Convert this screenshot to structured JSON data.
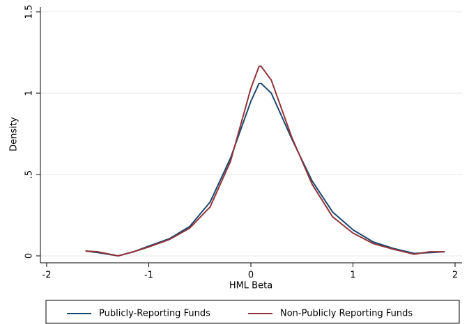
{
  "chart_data": {
    "type": "line",
    "x_label": "HML Beta",
    "y_label": "Density",
    "x": [
      -1.62,
      -1.5,
      -1.3,
      -1.15,
      -1.0,
      -0.8,
      -0.6,
      -0.4,
      -0.2,
      0,
      0.08,
      0.1,
      0.2,
      0.4,
      0.6,
      0.8,
      1.0,
      1.2,
      1.4,
      1.6,
      1.75,
      1.9
    ],
    "series": [
      {
        "name": "Publicly-Reporting Funds",
        "color": "#1a476f",
        "values": [
          0.03,
          0.02,
          0.0,
          0.025,
          0.06,
          0.105,
          0.18,
          0.33,
          0.6,
          0.95,
          1.06,
          1.06,
          1.0,
          0.72,
          0.46,
          0.27,
          0.16,
          0.085,
          0.045,
          0.015,
          0.02,
          0.025
        ]
      },
      {
        "name": "Non-Publicly Reporting Funds",
        "color": "#90353b",
        "values": [
          0.03,
          0.025,
          0.0,
          0.025,
          0.055,
          0.1,
          0.17,
          0.3,
          0.58,
          1.03,
          1.165,
          1.165,
          1.08,
          0.73,
          0.44,
          0.24,
          0.14,
          0.075,
          0.04,
          0.01,
          0.025,
          0.025
        ]
      }
    ],
    "xlim": [
      -2,
      2
    ],
    "xticks": [
      -2,
      -1,
      0,
      1,
      2
    ],
    "ylim": [
      0,
      1.5
    ],
    "yticks": [
      0,
      {
        "value": 0.5,
        "label": ".5"
      },
      1,
      1.5
    ],
    "grid": true
  }
}
